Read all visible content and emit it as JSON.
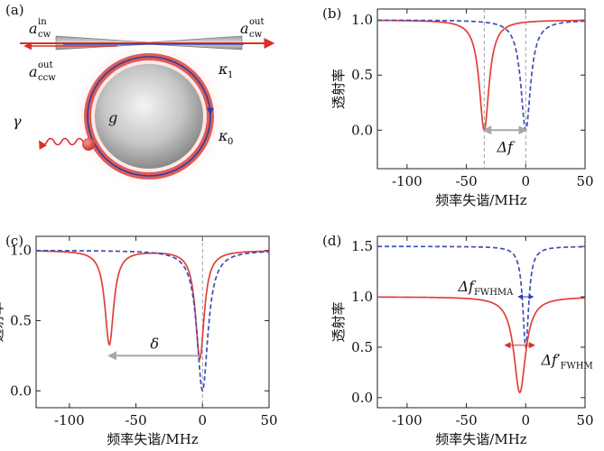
{
  "panels": {
    "a": {
      "label": "(a)",
      "symbols": {
        "a_cw_in_base": "a",
        "a_cw_in_sup": "in",
        "a_cw_in_sub": "cw",
        "a_cw_out_base": "a",
        "a_cw_out_sup": "out",
        "a_cw_out_sub": "cw",
        "a_ccw_out_base": "a",
        "a_ccw_out_sup": "out",
        "a_ccw_out_sub": "ccw",
        "kappa1_base": "κ",
        "kappa1_sub": "1",
        "kappa0_base": "κ",
        "kappa0_sub": "0",
        "gamma": "γ",
        "g": "g"
      }
    }
  },
  "colors": {
    "red": "#e0413a",
    "blue": "#3f4fb5",
    "grey_arrow": "#a8a8a8",
    "axis": "#222222"
  },
  "chart_data": [
    {
      "id": "b",
      "type": "line",
      "panel_label": "(b)",
      "xlabel": "频率失谐/MHz",
      "ylabel": "透射率",
      "xlim": [
        -125,
        50
      ],
      "ylim": [
        -0.35,
        1.1
      ],
      "xticks": [
        -100,
        -50,
        0,
        50
      ],
      "yticks": [
        0.0,
        0.5,
        1.0
      ],
      "ytick_labels": [
        "0.0",
        "0.5",
        "1.0"
      ],
      "series": [
        {
          "style": "solid",
          "color": "red",
          "curves": [
            {
              "x0": -35,
              "w": 10,
              "depth": 1.0
            }
          ]
        },
        {
          "style": "dashed",
          "color": "blue",
          "curves": [
            {
              "x0": 0,
              "w": 10,
              "depth": 1.0
            }
          ]
        }
      ],
      "vlines": [
        -35,
        0
      ],
      "annotations": [
        {
          "text": "Δf",
          "from_x": -35,
          "to_x": 0,
          "y": 0.0
        }
      ]
    },
    {
      "id": "c",
      "type": "line",
      "panel_label": "(c)",
      "xlabel": "频率失谐/MHz",
      "ylabel": "透射率",
      "xlim": [
        -125,
        50
      ],
      "ylim": [
        -0.12,
        1.1
      ],
      "xticks": [
        -100,
        -50,
        0,
        50
      ],
      "yticks": [
        0.0,
        0.5,
        1.0
      ],
      "ytick_labels": [
        "0.0",
        "0.5",
        "1.0"
      ],
      "series": [
        {
          "style": "solid",
          "color": "red",
          "curves": [
            {
              "x0": -70,
              "w": 8,
              "depth": 0.67
            },
            {
              "x0": -2,
              "w": 8,
              "depth": 0.77
            }
          ]
        },
        {
          "style": "dashed",
          "color": "blue",
          "curves": [
            {
              "x0": 0,
              "w": 10,
              "depth": 1.0
            }
          ]
        }
      ],
      "vlines": [
        0
      ],
      "annotations": [
        {
          "text": "δ",
          "from_x": -2,
          "to_x": -70,
          "y": 0.25
        }
      ]
    },
    {
      "id": "d",
      "type": "line",
      "panel_label": "(d)",
      "xlabel": "频率失谐/MHz",
      "ylabel": "透射率",
      "xlim": [
        -125,
        50
      ],
      "ylim": [
        -0.1,
        1.6
      ],
      "xticks": [
        -100,
        -50,
        0,
        50
      ],
      "yticks": [
        0.0,
        0.5,
        1.0,
        1.5
      ],
      "ytick_labels": [
        "0.0",
        "0.5",
        "1.0",
        "1.5"
      ],
      "series": [
        {
          "style": "dashed",
          "color": "blue",
          "offset": 0.5,
          "curves": [
            {
              "x0": 0,
              "w": 6,
              "depth": 1.0
            }
          ]
        },
        {
          "style": "solid",
          "color": "red",
          "curves": [
            {
              "x0": -5,
              "w": 12,
              "depth": 0.95
            }
          ]
        }
      ],
      "annotations": [
        {
          "text": "Δf",
          "sub": "FWHMA",
          "from_x": -6,
          "to_x": 6,
          "y": 1.0
        },
        {
          "text": "Δf′",
          "sub": "FWHM",
          "from_x": -17,
          "to_x": 7,
          "y": 0.52
        }
      ]
    }
  ]
}
